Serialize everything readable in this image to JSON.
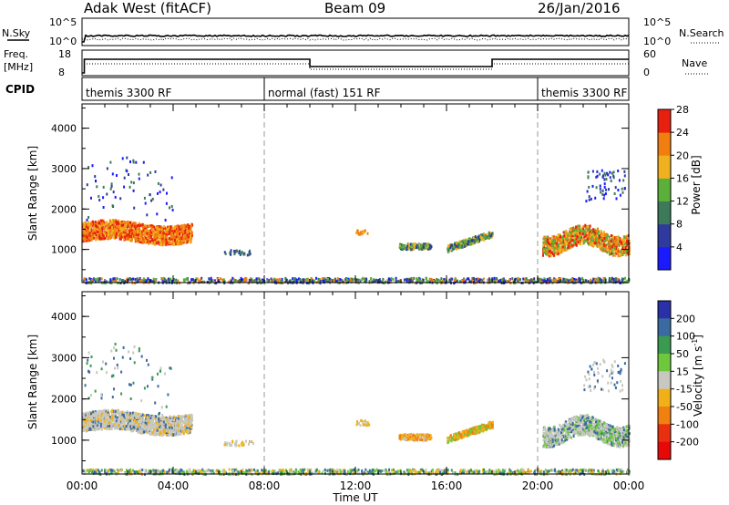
{
  "header": {
    "station": "Adak West (fitACF)",
    "beam": "Beam 09",
    "date": "26/Jan/2016"
  },
  "panels": {
    "nsky_label": "N.Sky",
    "nsky_ticks": [
      "10^5",
      "10^0"
    ],
    "nsearch_label": "N.Search",
    "nsearch_ticks": [
      "10^5",
      "10^0"
    ],
    "freq_label_1": "Freq.",
    "freq_label_2": "[MHz]",
    "freq_ticks": [
      "18",
      "8"
    ],
    "nave_label": "Nave",
    "nave_ticks": [
      "60",
      "0"
    ],
    "cpid_label": "CPID",
    "cpid_segments": [
      {
        "label": "themis 3300 RF",
        "start": 0,
        "end": 8
      },
      {
        "label": "normal (fast) 151 RF",
        "start": 8,
        "end": 20
      },
      {
        "label": "themis 3300 RF",
        "start": 20,
        "end": 24
      }
    ]
  },
  "chart_data": [
    {
      "type": "heatmap",
      "name": "power",
      "xlabel": "",
      "ylabel": "Slant Range [km]",
      "yticks": [
        "1000",
        "2000",
        "3000",
        "4000"
      ],
      "xlim": [
        0,
        24
      ],
      "ylim": [
        180,
        4600
      ],
      "colorbar_title": "Power [dB]",
      "colorbar_ticks": [
        "4",
        "8",
        "12",
        "16",
        "20",
        "24",
        "28"
      ],
      "colors": [
        "#1a1aff",
        "#2e3a9e",
        "#3c7a5a",
        "#5ab038",
        "#f0b020",
        "#f07f10",
        "#e82010"
      ]
    },
    {
      "type": "heatmap",
      "name": "velocity",
      "xlabel": "Time UT",
      "ylabel": "Slant Range [km]",
      "yticks": [
        "1000",
        "2000",
        "3000",
        "4000"
      ],
      "xticks": [
        "00:00",
        "04:00",
        "08:00",
        "12:00",
        "16:00",
        "20:00",
        "00:00"
      ],
      "xlim": [
        0,
        24
      ],
      "ylim": [
        180,
        4600
      ],
      "colorbar_title": "Velocity [m s",
      "colorbar_sup": "-1",
      "colorbar_ticks": [
        "200",
        "100",
        "50",
        "15",
        "-15",
        "-50",
        "-100",
        "-200"
      ],
      "colors": [
        "#2a30a8",
        "#3a6aa0",
        "#3a9a50",
        "#6ec83c",
        "#c8c8c0",
        "#f0b018",
        "#f08010",
        "#e83010",
        "#e80808"
      ]
    }
  ]
}
